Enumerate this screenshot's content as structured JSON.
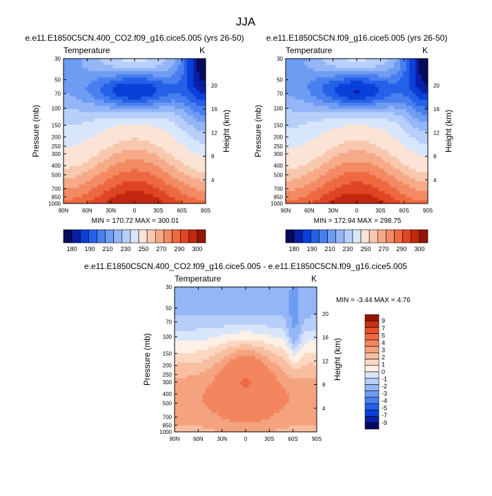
{
  "figure": {
    "title": "JJA"
  },
  "colors": {
    "abs_scale": [
      "#08085c",
      "#0a1fa8",
      "#0b3fd9",
      "#2461e8",
      "#4a7fef",
      "#6f9cf3",
      "#94b6f6",
      "#b7cffa",
      "#d8e6fc",
      "#fbe4d6",
      "#f8c8ae",
      "#f6aa88",
      "#f38a63",
      "#ee6840",
      "#e04523",
      "#c3270f",
      "#941505"
    ],
    "diff_scale": [
      "#08085c",
      "#0a1fa8",
      "#0b3fd9",
      "#2461e8",
      "#4a7fef",
      "#6f9cf3",
      "#94b6f6",
      "#b7cffa",
      "#d8e6fc",
      "#fdf0e4",
      "#fbd8c3",
      "#f8bea0",
      "#f5a27f",
      "#f3855f",
      "#ef6a43",
      "#e6502a",
      "#c73012",
      "#941505"
    ]
  },
  "chart_data": [
    {
      "type": "heatmap",
      "title": "e.e11.E1850C5CN.400_CO2.f09_g16.cice5.005 (yrs 26-50)",
      "left_label": "Temperature",
      "right_label": "K",
      "xlabel": "",
      "ylabel": "Pressure (mb)",
      "ylabel_right": "Height (km)",
      "x_ticks": [
        "90N",
        "60N",
        "30N",
        "0",
        "30S",
        "60S",
        "90S"
      ],
      "y_ticks": [
        "30",
        "50",
        "70",
        "100",
        "150",
        "200",
        "250",
        "300",
        "400",
        "500",
        "700",
        "850",
        "1000"
      ],
      "height_ticks": [
        "20",
        "16",
        "12",
        "8",
        "4"
      ],
      "stats": "MIN = 170.72   MAX = 300.01",
      "colorbar_labels": [
        "180",
        "190",
        "210",
        "230",
        "250",
        "270",
        "290",
        "300"
      ]
    },
    {
      "type": "heatmap",
      "title": "e.e11.E1850C5CN.f09_g16.cice5.005 (yrs 26-50)",
      "left_label": "Temperature",
      "right_label": "K",
      "xlabel": "",
      "ylabel": "Pressure (mb)",
      "ylabel_right": "Height (km)",
      "x_ticks": [
        "90N",
        "60N",
        "30N",
        "0",
        "30S",
        "60S",
        "90S"
      ],
      "y_ticks": [
        "30",
        "50",
        "70",
        "100",
        "150",
        "200",
        "250",
        "300",
        "400",
        "500",
        "700",
        "850",
        "1000"
      ],
      "height_ticks": [
        "20",
        "16",
        "12",
        "8",
        "4"
      ],
      "stats": "MIN = 172.94   MAX = 298.75",
      "colorbar_labels": [
        "180",
        "190",
        "210",
        "230",
        "250",
        "270",
        "290",
        "300"
      ]
    },
    {
      "type": "heatmap",
      "title": "e.e11.E1850C5CN.400_CO2.f09_g16.cice5.005 - e.e11.E1850C5CN.f09_g16.cice5.005",
      "left_label": "Temperature",
      "right_label": "K",
      "xlabel": "",
      "ylabel": "Pressure (mb)",
      "ylabel_right": "Height (km)",
      "x_ticks": [
        "90N",
        "60N",
        "30N",
        "0",
        "30S",
        "60S",
        "90S"
      ],
      "y_ticks": [
        "30",
        "50",
        "70",
        "100",
        "150",
        "200",
        "250",
        "300",
        "400",
        "500",
        "700",
        "850",
        "1000"
      ],
      "height_ticks": [
        "20",
        "16",
        "12",
        "8",
        "4"
      ],
      "stats": "MIN = -3.44   MAX =   4.76",
      "colorbar_labels": [
        "9",
        "7",
        "5",
        "4",
        "3",
        "2",
        "1",
        "0",
        "-1",
        "-2",
        "-3",
        "-4",
        "-5",
        "-7",
        "-9"
      ]
    }
  ]
}
